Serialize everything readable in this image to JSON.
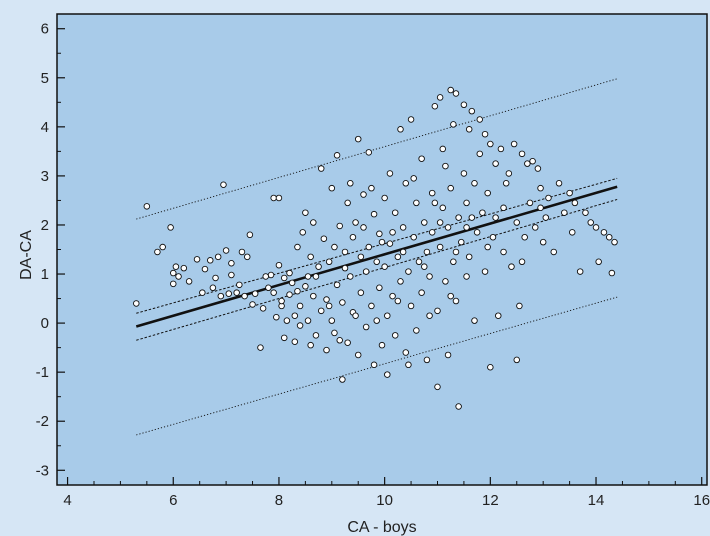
{
  "chart_data": {
    "type": "scatter",
    "title": "",
    "xlabel": "CA - boys",
    "ylabel": "DA-CA",
    "xlim": [
      3.8,
      16.1
    ],
    "ylim": [
      -3.3,
      6.3
    ],
    "x_ticks": [
      4,
      6,
      8,
      10,
      12,
      14,
      16
    ],
    "y_ticks": [
      -3,
      -2,
      -1,
      0,
      1,
      2,
      3,
      4,
      5,
      6
    ],
    "grid": false,
    "colors": {
      "outer_background": "#d6e6f5",
      "plot_background": "#a8cbe9",
      "marker_fill": "#ffffff",
      "marker_edge": "#111111",
      "line": "#111111"
    },
    "regression_line": {
      "x": [
        5.3,
        14.4
      ],
      "y": [
        -0.07,
        2.78
      ]
    },
    "confidence_band_upper": {
      "x": [
        5.3,
        14.4
      ],
      "y": [
        0.2,
        2.95
      ]
    },
    "confidence_band_lower": {
      "x": [
        5.3,
        14.4
      ],
      "y": [
        -0.35,
        2.52
      ]
    },
    "prediction_band_upper": {
      "x": [
        5.3,
        14.4
      ],
      "y": [
        2.12,
        4.98
      ]
    },
    "prediction_band_lower": {
      "x": [
        5.3,
        14.4
      ],
      "y": [
        -2.28,
        0.53
      ]
    },
    "series": [
      {
        "points": [
          [
            5.3,
            0.4
          ],
          [
            5.5,
            2.38
          ],
          [
            5.7,
            1.45
          ],
          [
            5.8,
            1.55
          ],
          [
            5.95,
            1.95
          ],
          [
            6.0,
            0.8
          ],
          [
            6.0,
            1.02
          ],
          [
            6.05,
            1.15
          ],
          [
            6.1,
            0.95
          ],
          [
            6.2,
            1.12
          ],
          [
            6.3,
            0.85
          ],
          [
            6.45,
            1.3
          ],
          [
            6.55,
            0.62
          ],
          [
            6.6,
            1.1
          ],
          [
            6.7,
            1.28
          ],
          [
            6.75,
            0.72
          ],
          [
            6.8,
            0.92
          ],
          [
            6.85,
            1.35
          ],
          [
            6.9,
            0.55
          ],
          [
            6.95,
            2.82
          ],
          [
            7.0,
            1.48
          ],
          [
            7.05,
            0.6
          ],
          [
            7.1,
            0.98
          ],
          [
            7.1,
            1.22
          ],
          [
            7.2,
            0.62
          ],
          [
            7.25,
            0.78
          ],
          [
            7.3,
            1.45
          ],
          [
            7.4,
            1.35
          ],
          [
            7.45,
            1.8
          ],
          [
            7.5,
            0.38
          ],
          [
            7.55,
            0.6
          ],
          [
            7.65,
            -0.5
          ],
          [
            7.7,
            0.3
          ],
          [
            7.8,
            0.72
          ],
          [
            7.85,
            0.98
          ],
          [
            7.9,
            2.55
          ],
          [
            7.9,
            0.62
          ],
          [
            7.95,
            0.12
          ],
          [
            8.0,
            1.18
          ],
          [
            8.0,
            2.55
          ],
          [
            8.05,
            0.35
          ],
          [
            8.1,
            -0.3
          ],
          [
            8.1,
            0.92
          ],
          [
            8.15,
            0.05
          ],
          [
            8.2,
            1.02
          ],
          [
            8.2,
            0.58
          ],
          [
            8.25,
            0.82
          ],
          [
            8.3,
            -0.38
          ],
          [
            8.3,
            0.15
          ],
          [
            8.35,
            1.55
          ],
          [
            8.4,
            0.35
          ],
          [
            8.4,
            -0.05
          ],
          [
            8.45,
            1.85
          ],
          [
            8.5,
            0.75
          ],
          [
            8.5,
            2.25
          ],
          [
            8.55,
            0.05
          ],
          [
            8.6,
            -0.45
          ],
          [
            8.6,
            1.35
          ],
          [
            8.65,
            0.55
          ],
          [
            8.7,
            0.95
          ],
          [
            8.7,
            -0.25
          ],
          [
            8.75,
            1.15
          ],
          [
            8.8,
            3.15
          ],
          [
            8.8,
            0.25
          ],
          [
            8.85,
            1.72
          ],
          [
            8.9,
            0.48
          ],
          [
            8.9,
            -0.55
          ],
          [
            8.95,
            1.25
          ],
          [
            9.0,
            2.75
          ],
          [
            9.0,
            0.05
          ],
          [
            9.05,
            1.55
          ],
          [
            9.05,
            -0.2
          ],
          [
            9.1,
            3.42
          ],
          [
            9.1,
            0.78
          ],
          [
            9.15,
            1.98
          ],
          [
            9.2,
            0.42
          ],
          [
            9.2,
            -1.15
          ],
          [
            9.25,
            1.12
          ],
          [
            9.3,
            2.45
          ],
          [
            9.3,
            -0.4
          ],
          [
            9.35,
            0.95
          ],
          [
            9.4,
            1.75
          ],
          [
            9.4,
            0.22
          ],
          [
            9.45,
            2.05
          ],
          [
            9.5,
            3.75
          ],
          [
            9.5,
            -0.65
          ],
          [
            9.55,
            1.35
          ],
          [
            9.55,
            0.62
          ],
          [
            9.6,
            2.62
          ],
          [
            9.65,
            1.05
          ],
          [
            9.65,
            -0.08
          ],
          [
            9.7,
            3.48
          ],
          [
            9.7,
            1.55
          ],
          [
            9.75,
            0.35
          ],
          [
            9.8,
            2.22
          ],
          [
            9.8,
            -0.85
          ],
          [
            9.85,
            1.25
          ],
          [
            9.9,
            0.72
          ],
          [
            9.9,
            1.82
          ],
          [
            9.95,
            -0.45
          ],
          [
            10.0,
            2.55
          ],
          [
            10.0,
            1.15
          ],
          [
            10.05,
            0.15
          ],
          [
            10.05,
            -1.05
          ],
          [
            10.1,
            3.05
          ],
          [
            10.1,
            1.62
          ],
          [
            10.15,
            0.55
          ],
          [
            10.2,
            2.25
          ],
          [
            10.2,
            -0.25
          ],
          [
            10.25,
            1.35
          ],
          [
            10.3,
            3.95
          ],
          [
            10.3,
            0.85
          ],
          [
            10.35,
            1.95
          ],
          [
            10.4,
            -0.6
          ],
          [
            10.4,
            2.85
          ],
          [
            10.45,
            1.05
          ],
          [
            10.5,
            0.35
          ],
          [
            10.5,
            4.15
          ],
          [
            10.55,
            1.75
          ],
          [
            10.6,
            2.45
          ],
          [
            10.6,
            -0.15
          ],
          [
            10.65,
            1.25
          ],
          [
            10.7,
            0.62
          ],
          [
            10.7,
            3.35
          ],
          [
            10.75,
            2.05
          ],
          [
            10.8,
            1.45
          ],
          [
            10.8,
            -0.75
          ],
          [
            10.85,
            0.95
          ],
          [
            10.9,
            2.65
          ],
          [
            10.9,
            1.85
          ],
          [
            10.95,
            4.42
          ],
          [
            11.0,
            0.25
          ],
          [
            11.0,
            -1.3
          ],
          [
            11.05,
            1.55
          ],
          [
            11.05,
            4.6
          ],
          [
            11.1,
            2.35
          ],
          [
            11.1,
            3.55
          ],
          [
            11.15,
            0.85
          ],
          [
            11.15,
            3.2
          ],
          [
            11.2,
            1.95
          ],
          [
            11.2,
            -0.65
          ],
          [
            11.25,
            4.75
          ],
          [
            11.25,
            2.75
          ],
          [
            11.3,
            1.25
          ],
          [
            11.3,
            4.05
          ],
          [
            11.35,
            4.68
          ],
          [
            11.35,
            0.45
          ],
          [
            11.4,
            2.15
          ],
          [
            11.4,
            -1.7
          ],
          [
            11.45,
            1.65
          ],
          [
            11.5,
            3.05
          ],
          [
            11.5,
            4.45
          ],
          [
            11.55,
            0.95
          ],
          [
            11.55,
            2.45
          ],
          [
            11.6,
            1.35
          ],
          [
            11.6,
            3.95
          ],
          [
            11.65,
            4.32
          ],
          [
            11.7,
            2.85
          ],
          [
            11.7,
            0.05
          ],
          [
            11.75,
            1.85
          ],
          [
            11.8,
            4.15
          ],
          [
            11.8,
            3.45
          ],
          [
            11.85,
            2.25
          ],
          [
            11.9,
            1.05
          ],
          [
            11.9,
            3.85
          ],
          [
            11.95,
            2.65
          ],
          [
            12.0,
            -0.9
          ],
          [
            12.0,
            3.65
          ],
          [
            12.05,
            1.75
          ],
          [
            12.1,
            3.25
          ],
          [
            12.1,
            2.15
          ],
          [
            12.15,
            0.15
          ],
          [
            12.2,
            3.55
          ],
          [
            12.25,
            1.45
          ],
          [
            12.3,
            2.85
          ],
          [
            12.35,
            3.05
          ],
          [
            12.4,
            1.15
          ],
          [
            12.45,
            3.65
          ],
          [
            12.5,
            -0.75
          ],
          [
            12.5,
            2.05
          ],
          [
            12.55,
            0.35
          ],
          [
            12.6,
            3.45
          ],
          [
            12.65,
            1.75
          ],
          [
            12.7,
            3.25
          ],
          [
            12.75,
            2.45
          ],
          [
            12.8,
            3.3
          ],
          [
            12.85,
            1.95
          ],
          [
            12.9,
            3.15
          ],
          [
            12.95,
            2.75
          ],
          [
            13.0,
            1.65
          ],
          [
            13.05,
            2.15
          ],
          [
            13.1,
            2.55
          ],
          [
            13.2,
            1.45
          ],
          [
            13.3,
            2.85
          ],
          [
            13.4,
            2.25
          ],
          [
            13.5,
            2.65
          ],
          [
            13.55,
            1.85
          ],
          [
            13.6,
            2.45
          ],
          [
            13.7,
            1.05
          ],
          [
            13.8,
            2.25
          ],
          [
            13.9,
            2.05
          ],
          [
            14.0,
            1.95
          ],
          [
            14.05,
            1.25
          ],
          [
            14.15,
            1.85
          ],
          [
            14.25,
            1.75
          ],
          [
            14.3,
            1.02
          ],
          [
            14.35,
            1.65
          ],
          [
            8.05,
            0.45
          ],
          [
            8.55,
            0.95
          ],
          [
            8.95,
            0.35
          ],
          [
            9.25,
            1.45
          ],
          [
            9.6,
            1.95
          ],
          [
            9.85,
            0.05
          ],
          [
            10.25,
            0.45
          ],
          [
            10.55,
            2.95
          ],
          [
            10.85,
            0.15
          ],
          [
            11.05,
            2.05
          ],
          [
            11.35,
            1.45
          ],
          [
            11.65,
            2.15
          ],
          [
            11.95,
            1.55
          ],
          [
            12.25,
            2.35
          ],
          [
            12.6,
            1.25
          ],
          [
            12.95,
            2.35
          ],
          [
            9.15,
            -0.35
          ],
          [
            9.45,
            0.15
          ],
          [
            9.75,
            2.75
          ],
          [
            10.15,
            1.85
          ],
          [
            10.45,
            -0.85
          ],
          [
            10.75,
            1.15
          ],
          [
            11.25,
            0.55
          ],
          [
            11.55,
            1.95
          ],
          [
            7.35,
            0.55
          ],
          [
            7.75,
            0.95
          ],
          [
            8.35,
            0.65
          ],
          [
            8.65,
            2.05
          ],
          [
            9.35,
            2.85
          ],
          [
            9.95,
            1.65
          ],
          [
            10.35,
            1.45
          ],
          [
            10.95,
            2.45
          ]
        ]
      }
    ]
  }
}
